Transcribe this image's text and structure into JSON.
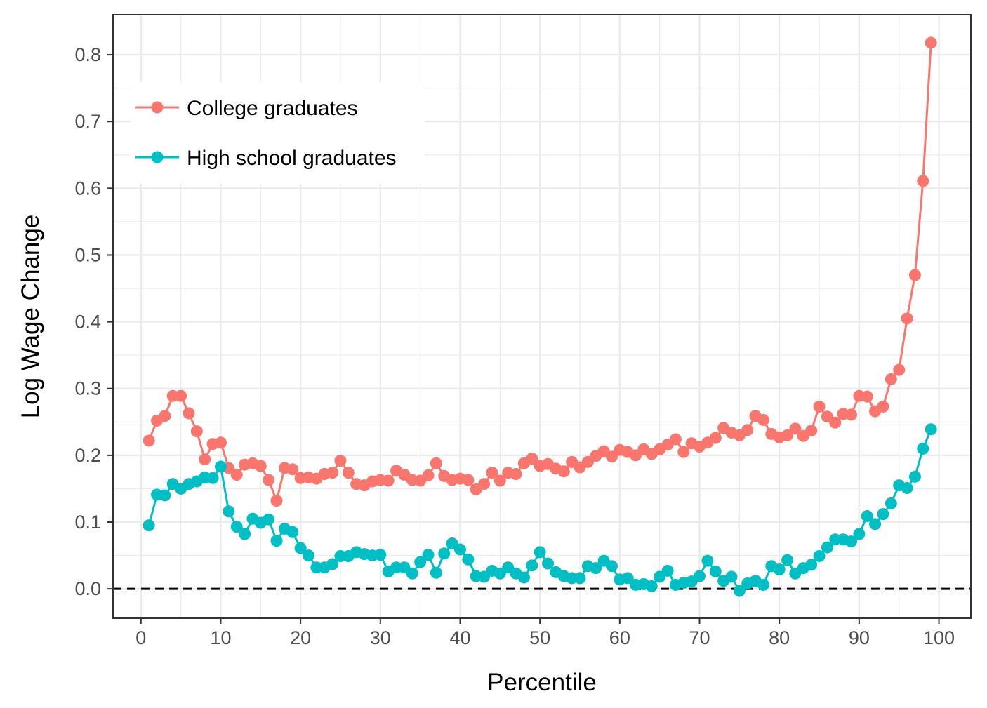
{
  "chart_data": {
    "type": "line",
    "title": "",
    "xlabel": "Percentile",
    "ylabel": "Log Wage Change",
    "xlim": [
      -3.5,
      104
    ],
    "ylim": [
      -0.044,
      0.86
    ],
    "x_ticks": [
      0,
      10,
      20,
      30,
      40,
      50,
      60,
      70,
      80,
      90,
      100
    ],
    "x_tick_labels": [
      "0",
      "10",
      "20",
      "30",
      "40",
      "50",
      "60",
      "70",
      "80",
      "90",
      "100"
    ],
    "y_ticks": [
      0.0,
      0.1,
      0.2,
      0.3,
      0.4,
      0.5,
      0.6,
      0.7,
      0.8
    ],
    "y_tick_labels": [
      "0.0",
      "0.1",
      "0.2",
      "0.3",
      "0.4",
      "0.5",
      "0.6",
      "0.7",
      "0.8"
    ],
    "grid": true,
    "legend_position": "top-left",
    "reference_line": {
      "y": 0,
      "style": "dashed",
      "color": "#000000"
    },
    "x": [
      1,
      2,
      3,
      4,
      5,
      6,
      7,
      8,
      9,
      10,
      11,
      12,
      13,
      14,
      15,
      16,
      17,
      18,
      19,
      20,
      21,
      22,
      23,
      24,
      25,
      26,
      27,
      28,
      29,
      30,
      31,
      32,
      33,
      34,
      35,
      36,
      37,
      38,
      39,
      40,
      41,
      42,
      43,
      44,
      45,
      46,
      47,
      48,
      49,
      50,
      51,
      52,
      53,
      54,
      55,
      56,
      57,
      58,
      59,
      60,
      61,
      62,
      63,
      64,
      65,
      66,
      67,
      68,
      69,
      70,
      71,
      72,
      73,
      74,
      75,
      76,
      77,
      78,
      79,
      80,
      81,
      82,
      83,
      84,
      85,
      86,
      87,
      88,
      89,
      90,
      91,
      92,
      93,
      94,
      95,
      96,
      97,
      98,
      99
    ],
    "series": [
      {
        "name": "College graduates",
        "color": "#f8766d",
        "values": [
          0.222,
          0.252,
          0.259,
          0.289,
          0.289,
          0.263,
          0.236,
          0.194,
          0.217,
          0.219,
          0.181,
          0.171,
          0.186,
          0.188,
          0.184,
          0.163,
          0.132,
          0.181,
          0.179,
          0.166,
          0.167,
          0.165,
          0.172,
          0.174,
          0.192,
          0.174,
          0.157,
          0.155,
          0.161,
          0.163,
          0.162,
          0.177,
          0.171,
          0.163,
          0.162,
          0.17,
          0.188,
          0.169,
          0.163,
          0.165,
          0.163,
          0.149,
          0.157,
          0.174,
          0.162,
          0.174,
          0.172,
          0.188,
          0.195,
          0.184,
          0.187,
          0.18,
          0.176,
          0.19,
          0.182,
          0.19,
          0.199,
          0.206,
          0.198,
          0.208,
          0.205,
          0.2,
          0.209,
          0.202,
          0.209,
          0.216,
          0.224,
          0.205,
          0.218,
          0.213,
          0.219,
          0.226,
          0.241,
          0.234,
          0.23,
          0.238,
          0.259,
          0.253,
          0.232,
          0.227,
          0.23,
          0.24,
          0.229,
          0.237,
          0.273,
          0.258,
          0.249,
          0.262,
          0.261,
          0.289,
          0.288,
          0.266,
          0.273,
          0.314,
          0.328,
          0.405,
          0.47,
          0.611,
          0.818
        ]
      },
      {
        "name": "High school graduates",
        "color": "#00bfc4",
        "values": [
          0.095,
          0.141,
          0.14,
          0.157,
          0.15,
          0.157,
          0.161,
          0.167,
          0.166,
          0.183,
          0.116,
          0.093,
          0.082,
          0.105,
          0.099,
          0.104,
          0.072,
          0.09,
          0.085,
          0.061,
          0.05,
          0.032,
          0.032,
          0.037,
          0.049,
          0.049,
          0.055,
          0.052,
          0.05,
          0.051,
          0.026,
          0.032,
          0.032,
          0.023,
          0.04,
          0.051,
          0.024,
          0.053,
          0.068,
          0.059,
          0.044,
          0.019,
          0.018,
          0.027,
          0.023,
          0.032,
          0.023,
          0.017,
          0.035,
          0.055,
          0.038,
          0.025,
          0.019,
          0.016,
          0.016,
          0.034,
          0.031,
          0.042,
          0.034,
          0.014,
          0.016,
          0.006,
          0.007,
          0.004,
          0.018,
          0.027,
          0.006,
          0.009,
          0.011,
          0.019,
          0.042,
          0.026,
          0.012,
          0.018,
          -0.003,
          0.008,
          0.012,
          0.006,
          0.034,
          0.029,
          0.043,
          0.023,
          0.031,
          0.036,
          0.049,
          0.062,
          0.074,
          0.074,
          0.071,
          0.082,
          0.109,
          0.097,
          0.112,
          0.128,
          0.155,
          0.151,
          0.168,
          0.21,
          0.239
        ]
      }
    ]
  }
}
